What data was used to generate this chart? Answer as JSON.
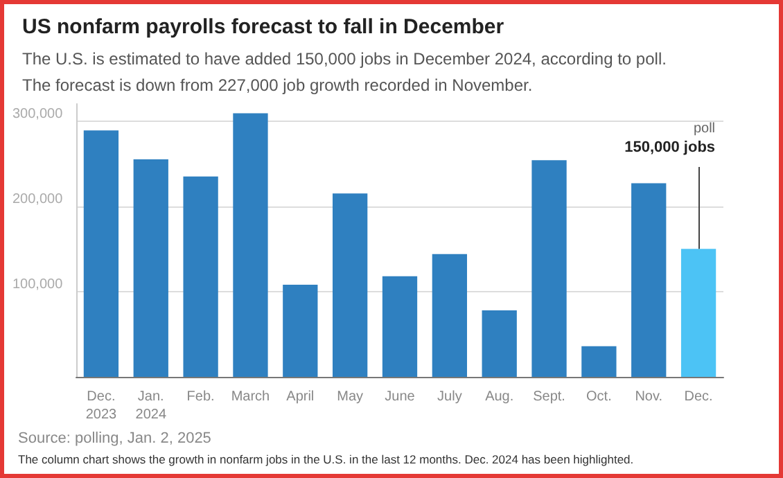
{
  "chart_data": {
    "type": "bar",
    "title": "US nonfarm payrolls forecast to fall in December",
    "subtitle": "The U.S. is estimated to have added 150,000 jobs in December 2024, according to poll.\nThe forecast is down from 227,000 job growth recorded in November.",
    "categories": [
      "Dec.\n2023",
      "Jan.\n2024",
      "Feb.",
      "March",
      "April",
      "May",
      "June",
      "July",
      "Aug.",
      "Sept.",
      "Oct.",
      "Nov.",
      "Dec."
    ],
    "values": [
      289000,
      255000,
      235000,
      309000,
      108000,
      215000,
      118000,
      144000,
      78000,
      254000,
      36000,
      227000,
      150000
    ],
    "colors": [
      "#2f80c0",
      "#2f80c0",
      "#2f80c0",
      "#2f80c0",
      "#2f80c0",
      "#2f80c0",
      "#2f80c0",
      "#2f80c0",
      "#2f80c0",
      "#2f80c0",
      "#2f80c0",
      "#2f80c0",
      "#4cc3f5"
    ],
    "ylim": [
      0,
      320000
    ],
    "yticks": [
      {
        "value": 0,
        "label": null
      },
      {
        "value": 100000,
        "label": "100,000"
      },
      {
        "value": 200000,
        "label": "200,000"
      },
      {
        "value": 300000,
        "label": "300,000"
      }
    ],
    "grid": "y",
    "annotations": [
      {
        "text": "poll\n150,000 jobs",
        "x": "Dec.",
        "y": 150000
      },
      "Source: polling, Jan. 2, 2025",
      "The column chart shows the growth in nonfarm jobs in the U.S. in the last 12 months. Dec. 2024 has been highlighted."
    ]
  }
}
